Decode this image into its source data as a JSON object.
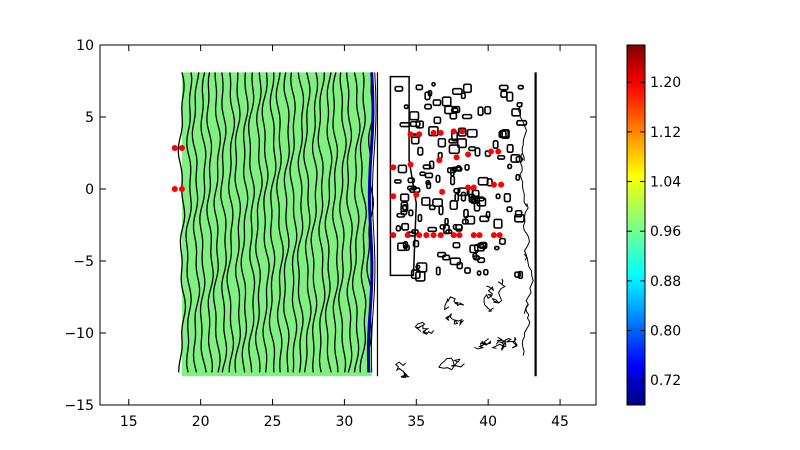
{
  "chart_data": {
    "type": "heatmap",
    "title": "",
    "xlabel": "",
    "ylabel": "",
    "xlim": [
      13,
      47.5
    ],
    "ylim": [
      -15,
      10
    ],
    "x_ticks": [
      "15",
      "20",
      "25",
      "30",
      "35",
      "40",
      "45"
    ],
    "y_ticks": [
      "10",
      "5",
      "0",
      "−5",
      "−10",
      "−15"
    ],
    "grid": false,
    "field": {
      "x_range": [
        18.7,
        31.8
      ],
      "y_range": [
        -13,
        8.1
      ],
      "value": 0.97,
      "fill_color": "#80f080",
      "front_x": 31.9
    },
    "wall_x": [
      32.3,
      43.3
    ],
    "colorbar": {
      "min": 0.68,
      "max": 1.26,
      "ticks": [
        "0.72",
        "0.80",
        "0.88",
        "0.96",
        "1.04",
        "1.12",
        "1.20"
      ],
      "colormap": "jet"
    },
    "gauges": {
      "color": "#ff0000",
      "points": [
        [
          18.2,
          2.85
        ],
        [
          18.7,
          2.85
        ],
        [
          18.2,
          0
        ],
        [
          18.7,
          0
        ],
        [
          34.6,
          3.8
        ],
        [
          35.2,
          3.8
        ],
        [
          36.2,
          3.9
        ],
        [
          36.7,
          3.9
        ],
        [
          37.6,
          4.0
        ],
        [
          38.2,
          4.0
        ],
        [
          33.4,
          1.5
        ],
        [
          34.6,
          1.7
        ],
        [
          36.6,
          2.0
        ],
        [
          37.8,
          2.2
        ],
        [
          38.6,
          2.4
        ],
        [
          40.2,
          2.6
        ],
        [
          40.7,
          2.6
        ],
        [
          33.4,
          -0.5
        ],
        [
          35.0,
          -0.4
        ],
        [
          36.8,
          -0.2
        ],
        [
          38.6,
          0.1
        ],
        [
          39.0,
          0.1
        ],
        [
          40.4,
          0.3
        ],
        [
          40.9,
          0.3
        ],
        [
          33.4,
          -3.2
        ],
        [
          34.4,
          -3.2
        ],
        [
          35.2,
          -3.2
        ],
        [
          35.7,
          -3.2
        ],
        [
          36.2,
          -3.2
        ],
        [
          36.7,
          -3.2
        ],
        [
          37.6,
          -3.2
        ],
        [
          38.0,
          -3.2
        ],
        [
          39.0,
          -3.2
        ],
        [
          39.4,
          -3.2
        ],
        [
          40.4,
          -3.2
        ],
        [
          40.8,
          -3.2
        ]
      ]
    }
  }
}
